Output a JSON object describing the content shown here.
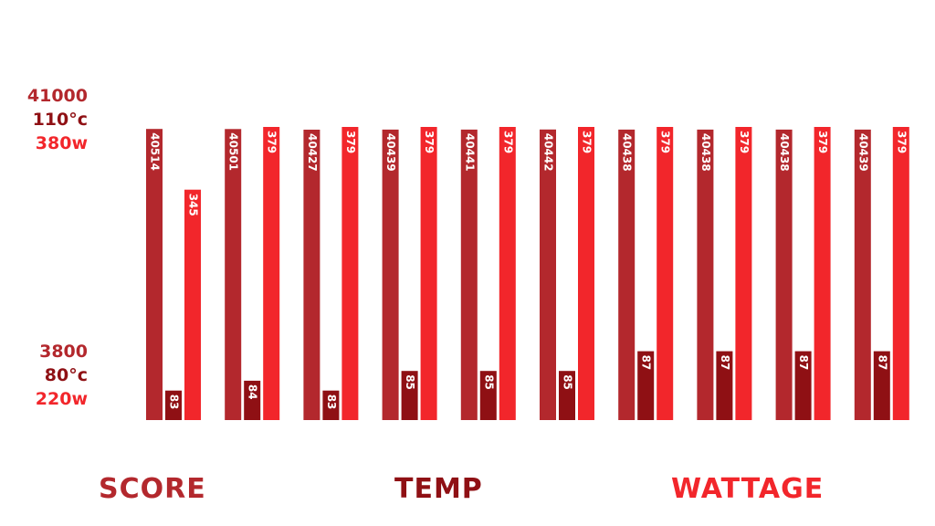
{
  "axis": {
    "top": {
      "score": "41000",
      "temp": "110°c",
      "watt": "380w"
    },
    "bottom": {
      "score": "3800",
      "temp": "80°c",
      "watt": "220w"
    }
  },
  "legend": {
    "score": "SCORE",
    "temp": "TEMP",
    "watt": "WATTAGE"
  },
  "colors": {
    "score": "#b3282d",
    "temp": "#8f1014",
    "watt": "#f2262b"
  },
  "chart_data": {
    "type": "bar",
    "categories": [
      "",
      "",
      "",
      "",
      "",
      "",
      "",
      "",
      "",
      ""
    ],
    "series": [
      {
        "name": "SCORE",
        "values": [
          40514,
          40501,
          40427,
          40439,
          40441,
          40442,
          40438,
          40438,
          40438,
          40439
        ],
        "range": [
          3800,
          41000
        ]
      },
      {
        "name": "TEMP",
        "values": [
          83,
          84,
          83,
          85,
          85,
          85,
          87,
          87,
          87,
          87
        ],
        "range": [
          80,
          110
        ]
      },
      {
        "name": "WATTAGE",
        "values": [
          345,
          379,
          379,
          379,
          379,
          379,
          379,
          379,
          379,
          379
        ],
        "range": [
          220,
          380
        ]
      }
    ]
  }
}
